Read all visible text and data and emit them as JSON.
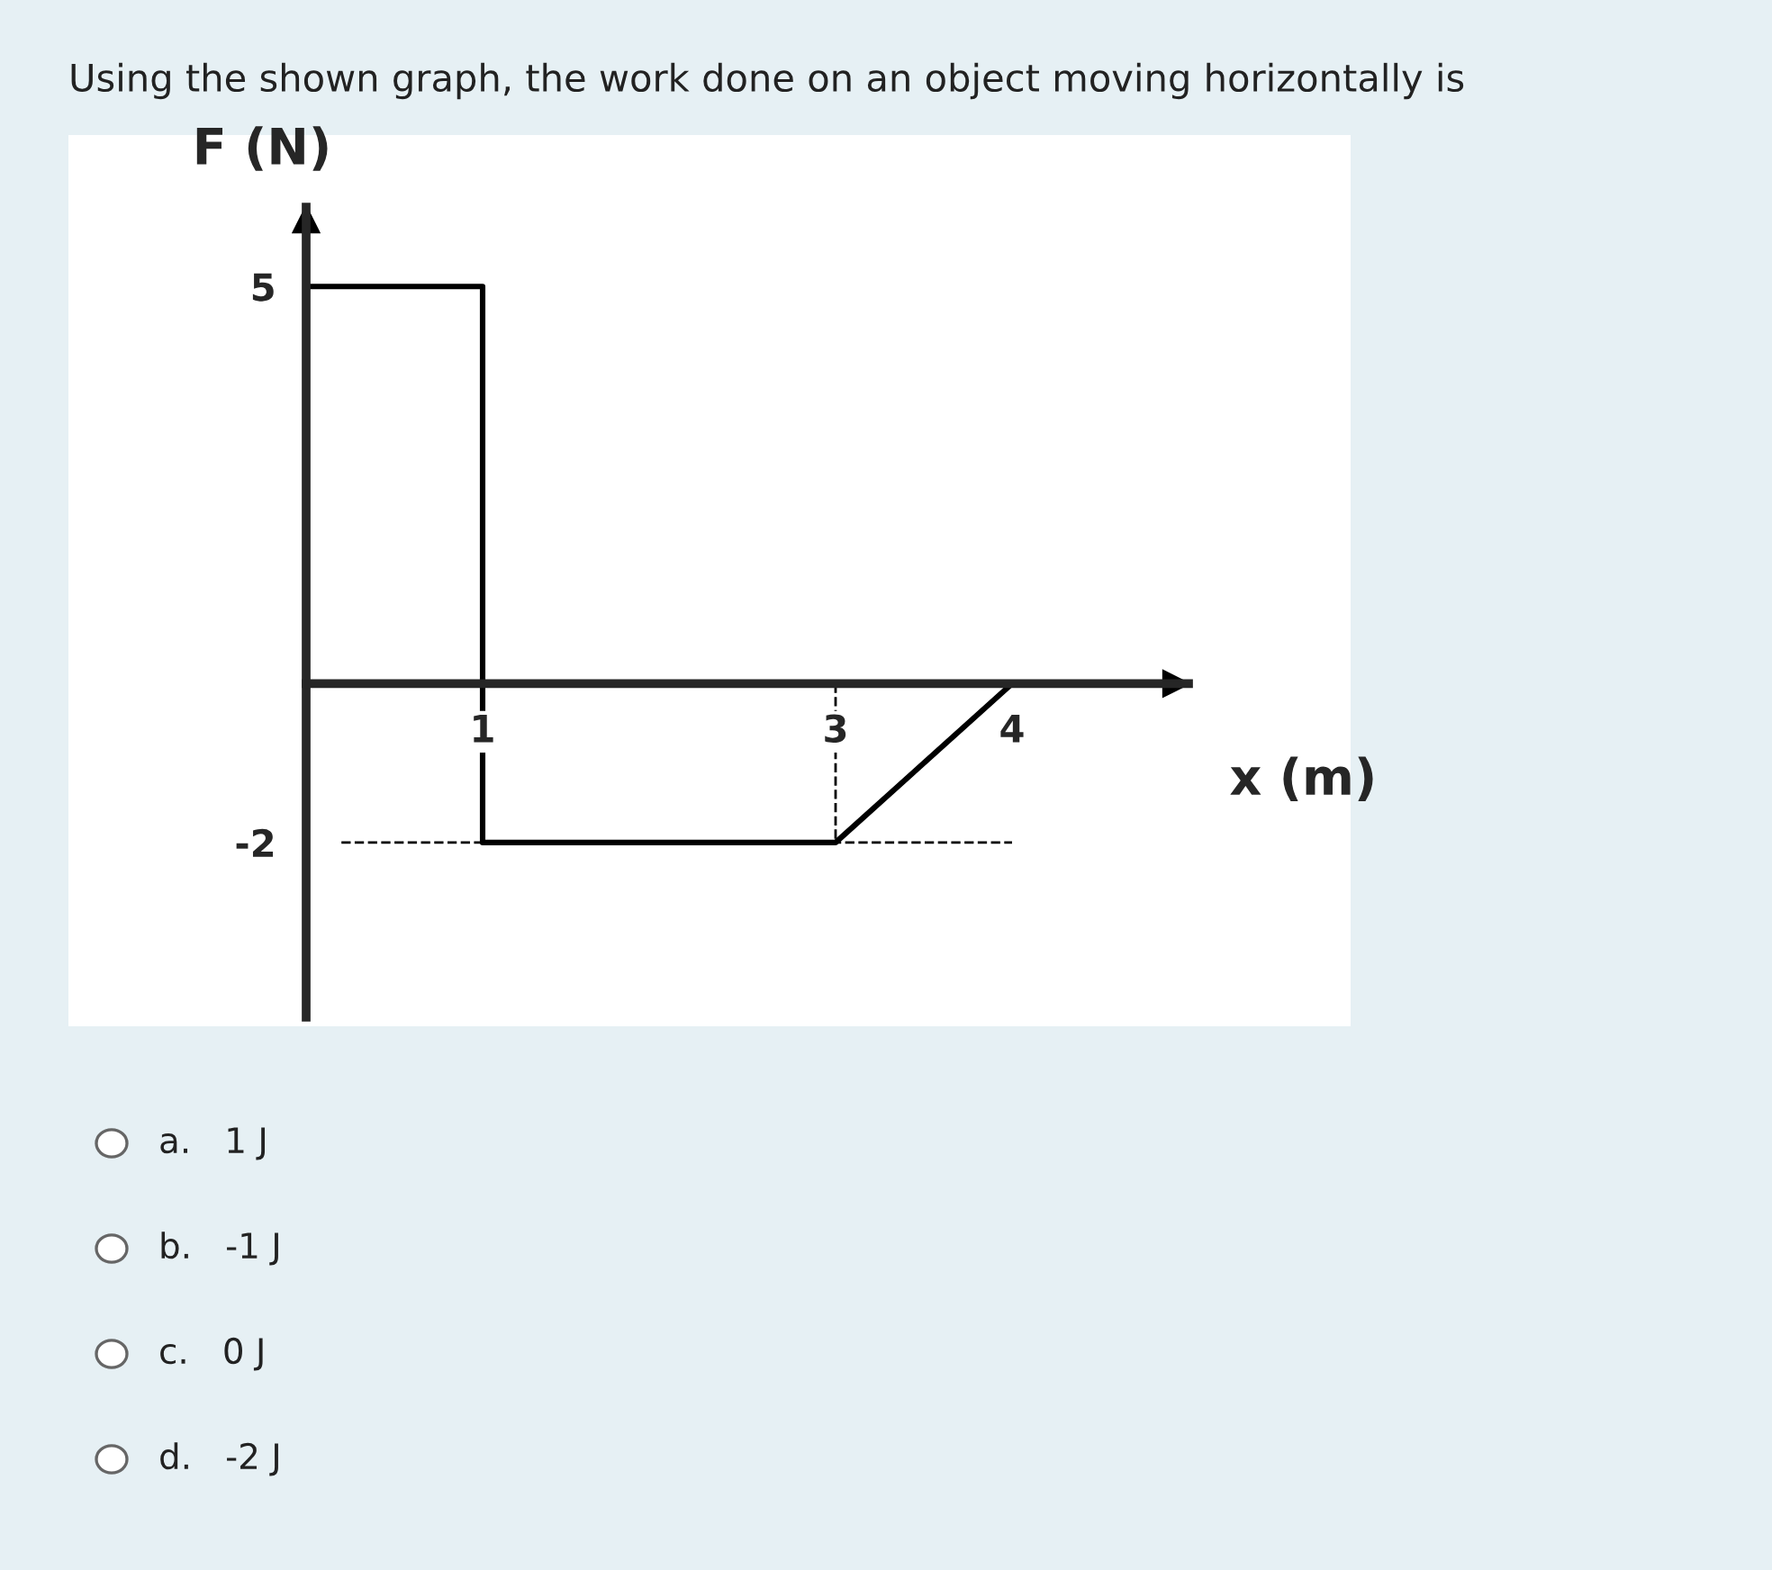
{
  "chart_data": {
    "type": "line",
    "title": "Using the shown graph, the work done on an object moving horizontally is",
    "xlabel": "x (m)",
    "ylabel": "F (N)",
    "x": [
      0,
      1,
      1,
      3,
      4
    ],
    "series": [
      {
        "color": "#000000",
        "values": [
          5,
          5,
          -2,
          -2,
          0
        ]
      },
      {
        "color": "#000000",
        "x": [
          3,
          3
        ],
        "values": [
          0,
          -2
        ],
        "line_style": "dashed"
      }
    ],
    "xlim": [
      0,
      5
    ],
    "ylim": [
      -4.2,
      6
    ],
    "xticks": [
      1,
      3,
      4
    ],
    "yticks": [
      5,
      -2
    ],
    "ref_lines": [
      {
        "axis": "y",
        "value": -2,
        "line_style": "dashed",
        "color": "#000000"
      }
    ],
    "annotations": [
      "a.   1 J",
      "b.   -1 J",
      "c.   0 J",
      "d.   -2 J"
    ],
    "grid": false,
    "marker": "none",
    "line_style": "solid"
  }
}
